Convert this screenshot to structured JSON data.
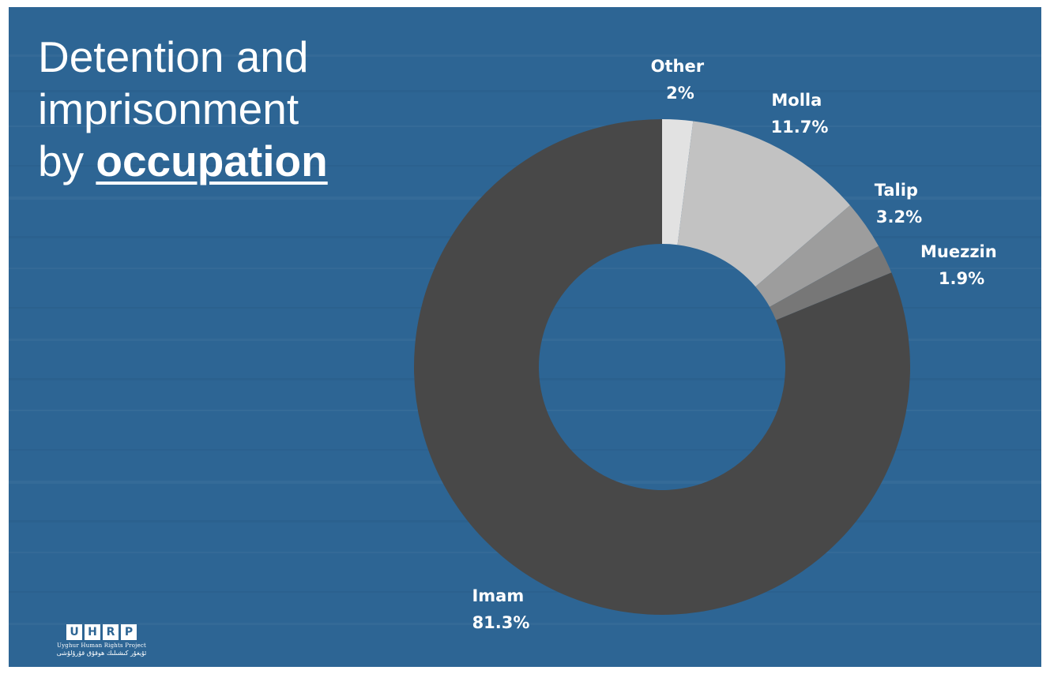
{
  "header": {
    "title_line1": "Detention and",
    "title_line2": "imprisonment",
    "title_line3_prefix": "by ",
    "title_line3_emphasis": "occupation"
  },
  "logo": {
    "letters": [
      "U",
      "H",
      "R",
      "P"
    ],
    "name": "Uyghur Human Rights Project",
    "name_uyghur": "ئۇيغۇر كىشىلىك ھوقۇق قۇرۇلۇشى"
  },
  "colors": {
    "background": "#2d6594",
    "text": "#ffffff"
  },
  "chart_data": {
    "type": "pie",
    "variant": "donut",
    "title": "Detention and imprisonment by occupation",
    "start": "top, clockwise",
    "slices": [
      {
        "label": "Other",
        "value": 2,
        "display": "2%",
        "color": "#e2e2e2"
      },
      {
        "label": "Molla",
        "value": 11.7,
        "display": "11.7%",
        "color": "#c2c2c2"
      },
      {
        "label": "Talip",
        "value": 3.2,
        "display": "3.2%",
        "color": "#9d9d9d"
      },
      {
        "label": "Muezzin",
        "value": 1.9,
        "display": "1.9%",
        "color": "#777777"
      },
      {
        "label": "Imam",
        "value": 81.3,
        "display": "81.3%",
        "color": "#484848"
      }
    ],
    "legend": "none"
  }
}
